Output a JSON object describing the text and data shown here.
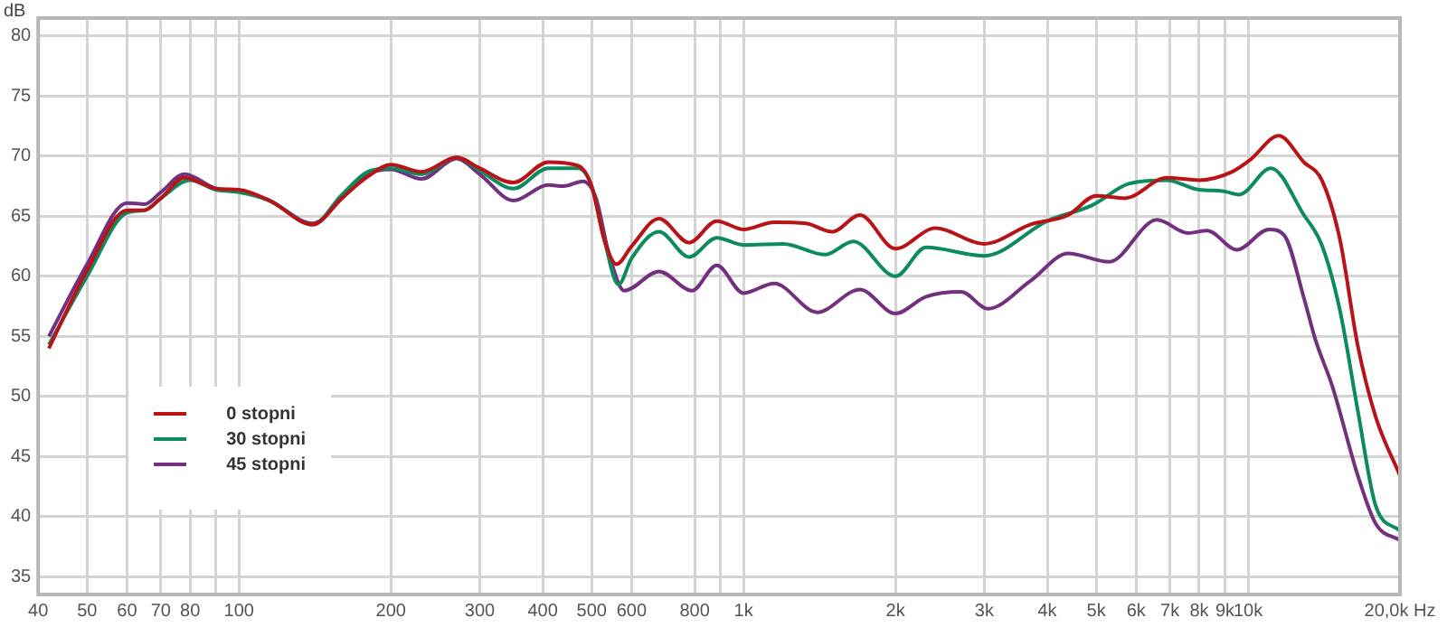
{
  "chart_data": {
    "type": "line",
    "ylabel": "dB",
    "log": "x",
    "grid": true,
    "legend": "bottom left",
    "marker": "none",
    "line_style": "solid",
    "xlim": [
      40,
      20000
    ],
    "ylim": [
      33.5,
      81.5
    ],
    "xticks": [
      40,
      50,
      60,
      70,
      80,
      {
        "value": 90,
        "label": null
      },
      100,
      200,
      300,
      400,
      500,
      600,
      800,
      {
        "value": 900,
        "label": null
      },
      {
        "value": 1000,
        "label": "1k"
      },
      {
        "value": 2000,
        "label": "2k"
      },
      {
        "value": 3000,
        "label": "3k"
      },
      {
        "value": 4000,
        "label": "4k"
      },
      {
        "value": 5000,
        "label": "5k"
      },
      {
        "value": 6000,
        "label": "6k"
      },
      {
        "value": 7000,
        "label": "7k"
      },
      {
        "value": 8000,
        "label": "8k"
      },
      {
        "value": 9000,
        "label": "9k"
      },
      {
        "value": 10000,
        "label": "10k"
      },
      {
        "value": 20000,
        "label": "20,0k Hz"
      }
    ],
    "yticks": [
      35,
      40,
      45,
      50,
      55,
      60,
      65,
      70,
      75,
      80
    ],
    "series": [
      {
        "name": "0 stopni",
        "color": "#b81418",
        "x": [
          42,
          50,
          60,
          65,
          70,
          78,
          90,
          100,
          115,
          140,
          160,
          180,
          200,
          230,
          270,
          300,
          350,
          410,
          470,
          500,
          530,
          560,
          600,
          680,
          780,
          885,
          1000,
          1150,
          1330,
          1500,
          1700,
          2000,
          2400,
          3000,
          3700,
          4400,
          5000,
          5700,
          6900,
          8000,
          9300,
          10100,
          11500,
          12900,
          14000,
          15200,
          16500,
          17900,
          20000
        ],
        "values": [
          54.0,
          60.5,
          65.5,
          65.5,
          66.5,
          68.2,
          67.3,
          67.2,
          66.3,
          64.3,
          66.5,
          68.3,
          69.3,
          68.7,
          69.9,
          69.0,
          67.8,
          69.5,
          69.2,
          67.5,
          63.0,
          61.0,
          62.5,
          64.8,
          62.8,
          64.6,
          63.9,
          64.5,
          64.4,
          63.7,
          65.1,
          62.3,
          64.0,
          62.7,
          64.3,
          65.1,
          66.7,
          66.5,
          68.2,
          68.0,
          68.7,
          69.7,
          71.7,
          69.5,
          68.0,
          63.1,
          54.2,
          48.3,
          43.4
        ]
      },
      {
        "name": "30 stopni",
        "color": "#0e8a5f",
        "x": [
          42,
          50,
          60,
          65,
          70,
          80,
          90,
          100,
          115,
          140,
          160,
          180,
          200,
          230,
          270,
          300,
          350,
          410,
          470,
          500,
          530,
          565,
          600,
          680,
          780,
          885,
          1000,
          1200,
          1450,
          1650,
          2000,
          2300,
          3000,
          4000,
          4900,
          5800,
          6900,
          8000,
          8900,
          9600,
          11100,
          12900,
          14000,
          15200,
          16500,
          17900,
          20000
        ],
        "values": [
          54.3,
          60.0,
          65.3,
          65.5,
          66.5,
          68.0,
          67.2,
          67.0,
          66.3,
          64.3,
          66.8,
          68.7,
          69.0,
          68.5,
          69.9,
          68.8,
          67.3,
          69.0,
          69.0,
          67.5,
          63.0,
          59.3,
          61.5,
          63.7,
          61.6,
          63.2,
          62.6,
          62.7,
          61.8,
          62.9,
          60.0,
          62.4,
          61.7,
          64.6,
          65.9,
          67.7,
          68.0,
          67.2,
          67.1,
          66.8,
          69.0,
          65.1,
          62.6,
          57.2,
          48.8,
          40.9,
          38.8
        ]
      },
      {
        "name": "45 stopni",
        "color": "#73307f",
        "x": [
          42,
          50,
          60,
          65,
          70,
          78,
          90,
          100,
          115,
          140,
          160,
          180,
          200,
          230,
          270,
          300,
          350,
          410,
          440,
          480,
          510,
          540,
          580,
          680,
          790,
          885,
          1000,
          1150,
          1400,
          1700,
          2000,
          2300,
          2700,
          3050,
          3700,
          4400,
          5300,
          6600,
          7600,
          8300,
          9500,
          11000,
          11800,
          12900,
          13600,
          14700,
          16500,
          17900,
          20000
        ],
        "values": [
          55.0,
          61.0,
          66.1,
          66.0,
          67.0,
          68.5,
          67.3,
          67.1,
          66.3,
          64.4,
          66.5,
          68.5,
          68.9,
          68.1,
          69.8,
          68.5,
          66.3,
          67.6,
          67.5,
          67.9,
          66.5,
          62.0,
          58.8,
          60.4,
          58.8,
          60.9,
          58.6,
          59.4,
          57.0,
          58.9,
          56.9,
          58.3,
          58.7,
          57.3,
          59.6,
          61.9,
          61.2,
          64.7,
          63.6,
          63.8,
          62.2,
          63.9,
          63.4,
          58.2,
          54.7,
          50.8,
          43.4,
          39.4,
          38.0
        ]
      }
    ]
  }
}
